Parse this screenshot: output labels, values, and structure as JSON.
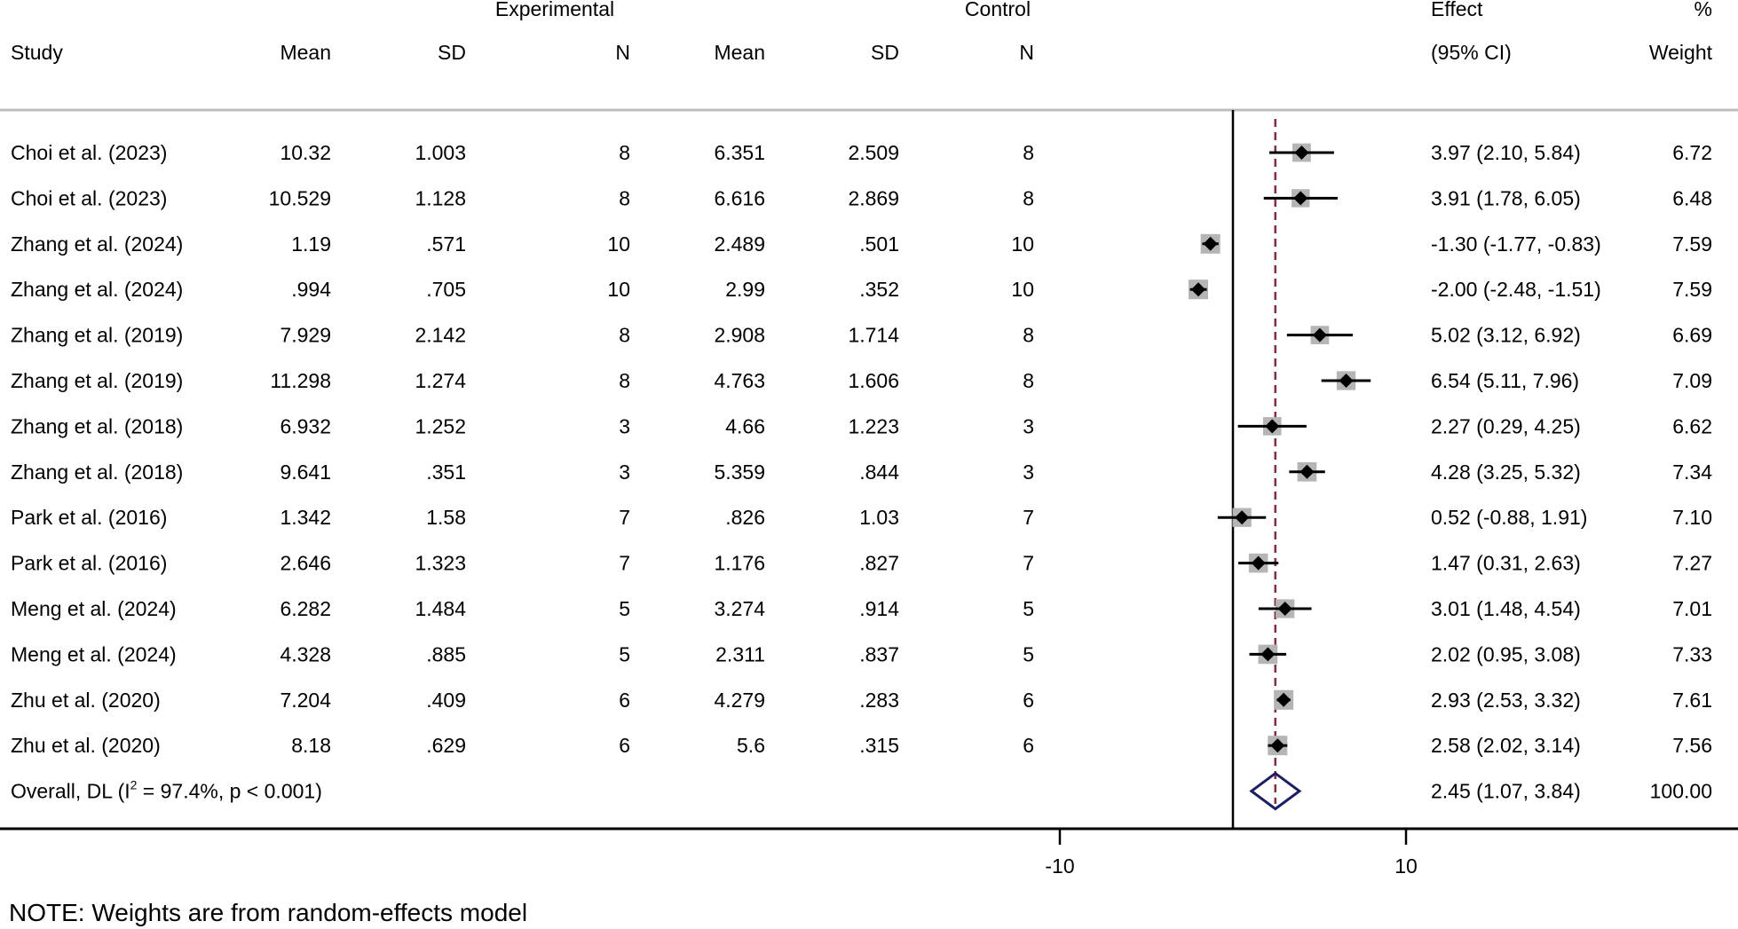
{
  "chart_data": {
    "type": "forest",
    "group_headers": {
      "experimental": "Experimental",
      "control": "Control"
    },
    "columns": {
      "study": "Study",
      "mean": "Mean",
      "sd": "SD",
      "n": "N",
      "effect_top": "Effect",
      "effect_bottom": "(95% CI)",
      "weight_top": "%",
      "weight_bottom": "Weight"
    },
    "studies": [
      {
        "study": "Choi et al. (2023)",
        "exp_mean": "10.32",
        "exp_sd": "1.003",
        "exp_n": "8",
        "ctl_mean": "6.351",
        "ctl_sd": "2.509",
        "ctl_n": "8",
        "es": 3.97,
        "lo": 2.1,
        "hi": 5.84,
        "ci_text": "3.97 (2.10, 5.84)",
        "weight": "6.72"
      },
      {
        "study": "Choi et al. (2023)",
        "exp_mean": "10.529",
        "exp_sd": "1.128",
        "exp_n": "8",
        "ctl_mean": "6.616",
        "ctl_sd": "2.869",
        "ctl_n": "8",
        "es": 3.91,
        "lo": 1.78,
        "hi": 6.05,
        "ci_text": "3.91 (1.78, 6.05)",
        "weight": "6.48"
      },
      {
        "study": "Zhang et al. (2024)",
        "exp_mean": "1.19",
        "exp_sd": ".571",
        "exp_n": "10",
        "ctl_mean": "2.489",
        "ctl_sd": ".501",
        "ctl_n": "10",
        "es": -1.3,
        "lo": -1.77,
        "hi": -0.83,
        "ci_text": "-1.30 (-1.77, -0.83)",
        "weight": "7.59"
      },
      {
        "study": "Zhang et al. (2024)",
        "exp_mean": ".994",
        "exp_sd": ".705",
        "exp_n": "10",
        "ctl_mean": "2.99",
        "ctl_sd": ".352",
        "ctl_n": "10",
        "es": -2.0,
        "lo": -2.48,
        "hi": -1.51,
        "ci_text": "-2.00 (-2.48, -1.51)",
        "weight": "7.59"
      },
      {
        "study": "Zhang et al. (2019)",
        "exp_mean": "7.929",
        "exp_sd": "2.142",
        "exp_n": "8",
        "ctl_mean": "2.908",
        "ctl_sd": "1.714",
        "ctl_n": "8",
        "es": 5.02,
        "lo": 3.12,
        "hi": 6.92,
        "ci_text": "5.02 (3.12, 6.92)",
        "weight": "6.69"
      },
      {
        "study": "Zhang et al. (2019)",
        "exp_mean": "11.298",
        "exp_sd": "1.274",
        "exp_n": "8",
        "ctl_mean": "4.763",
        "ctl_sd": "1.606",
        "ctl_n": "8",
        "es": 6.54,
        "lo": 5.11,
        "hi": 7.96,
        "ci_text": "6.54 (5.11, 7.96)",
        "weight": "7.09"
      },
      {
        "study": "Zhang  et al. (2018)",
        "exp_mean": "6.932",
        "exp_sd": "1.252",
        "exp_n": "3",
        "ctl_mean": "4.66",
        "ctl_sd": "1.223",
        "ctl_n": "3",
        "es": 2.27,
        "lo": 0.29,
        "hi": 4.25,
        "ci_text": "2.27 (0.29, 4.25)",
        "weight": "6.62"
      },
      {
        "study": "Zhang  et al. (2018)",
        "exp_mean": "9.641",
        "exp_sd": ".351",
        "exp_n": "3",
        "ctl_mean": "5.359",
        "ctl_sd": ".844",
        "ctl_n": "3",
        "es": 4.28,
        "lo": 3.25,
        "hi": 5.32,
        "ci_text": "4.28 (3.25, 5.32)",
        "weight": "7.34"
      },
      {
        "study": "Park et al. (2016)",
        "exp_mean": "1.342",
        "exp_sd": "1.58",
        "exp_n": "7",
        "ctl_mean": ".826",
        "ctl_sd": "1.03",
        "ctl_n": "7",
        "es": 0.52,
        "lo": -0.88,
        "hi": 1.91,
        "ci_text": "0.52 (-0.88, 1.91)",
        "weight": "7.10"
      },
      {
        "study": "Park et al. (2016)",
        "exp_mean": "2.646",
        "exp_sd": "1.323",
        "exp_n": "7",
        "ctl_mean": "1.176",
        "ctl_sd": ".827",
        "ctl_n": "7",
        "es": 1.47,
        "lo": 0.31,
        "hi": 2.63,
        "ci_text": "1.47 (0.31, 2.63)",
        "weight": "7.27"
      },
      {
        "study": "Meng et al. (2024)",
        "exp_mean": "6.282",
        "exp_sd": "1.484",
        "exp_n": "5",
        "ctl_mean": "3.274",
        "ctl_sd": ".914",
        "ctl_n": "5",
        "es": 3.01,
        "lo": 1.48,
        "hi": 4.54,
        "ci_text": "3.01 (1.48, 4.54)",
        "weight": "7.01"
      },
      {
        "study": "Meng et al. (2024)",
        "exp_mean": "4.328",
        "exp_sd": ".885",
        "exp_n": "5",
        "ctl_mean": "2.311",
        "ctl_sd": ".837",
        "ctl_n": "5",
        "es": 2.02,
        "lo": 0.95,
        "hi": 3.08,
        "ci_text": "2.02 (0.95, 3.08)",
        "weight": "7.33"
      },
      {
        "study": "Zhu et al. (2020)",
        "exp_mean": "7.204",
        "exp_sd": ".409",
        "exp_n": "6",
        "ctl_mean": "4.279",
        "ctl_sd": ".283",
        "ctl_n": "6",
        "es": 2.93,
        "lo": 2.53,
        "hi": 3.32,
        "ci_text": "2.93 (2.53, 3.32)",
        "weight": "7.61"
      },
      {
        "study": "Zhu et al. (2020)",
        "exp_mean": "8.18",
        "exp_sd": ".629",
        "exp_n": "6",
        "ctl_mean": "5.6",
        "ctl_sd": ".315",
        "ctl_n": "6",
        "es": 2.58,
        "lo": 2.02,
        "hi": 3.14,
        "ci_text": "2.58 (2.02, 3.14)",
        "weight": "7.56"
      }
    ],
    "overall": {
      "label_prefix": "Overall, DL (I",
      "label_sup": "2",
      "label_suffix": " = 97.4%, p < 0.001)",
      "es": 2.45,
      "lo": 1.07,
      "hi": 3.84,
      "ci_text": "2.45 (1.07, 3.84)",
      "weight": "100.00"
    },
    "x_axis": {
      "ticks": [
        -10,
        10
      ],
      "tick_labels": [
        "-10",
        "10"
      ],
      "null_value": 0
    },
    "note": "NOTE: Weights are from random-effects model",
    "colors": {
      "text": "#000000",
      "box": "#b5b5b5",
      "point": "#000000",
      "ci_line": "#000000",
      "overall_line": "#8b2c3c",
      "diamond": "#1a1f66",
      "axis": "#000000"
    }
  }
}
